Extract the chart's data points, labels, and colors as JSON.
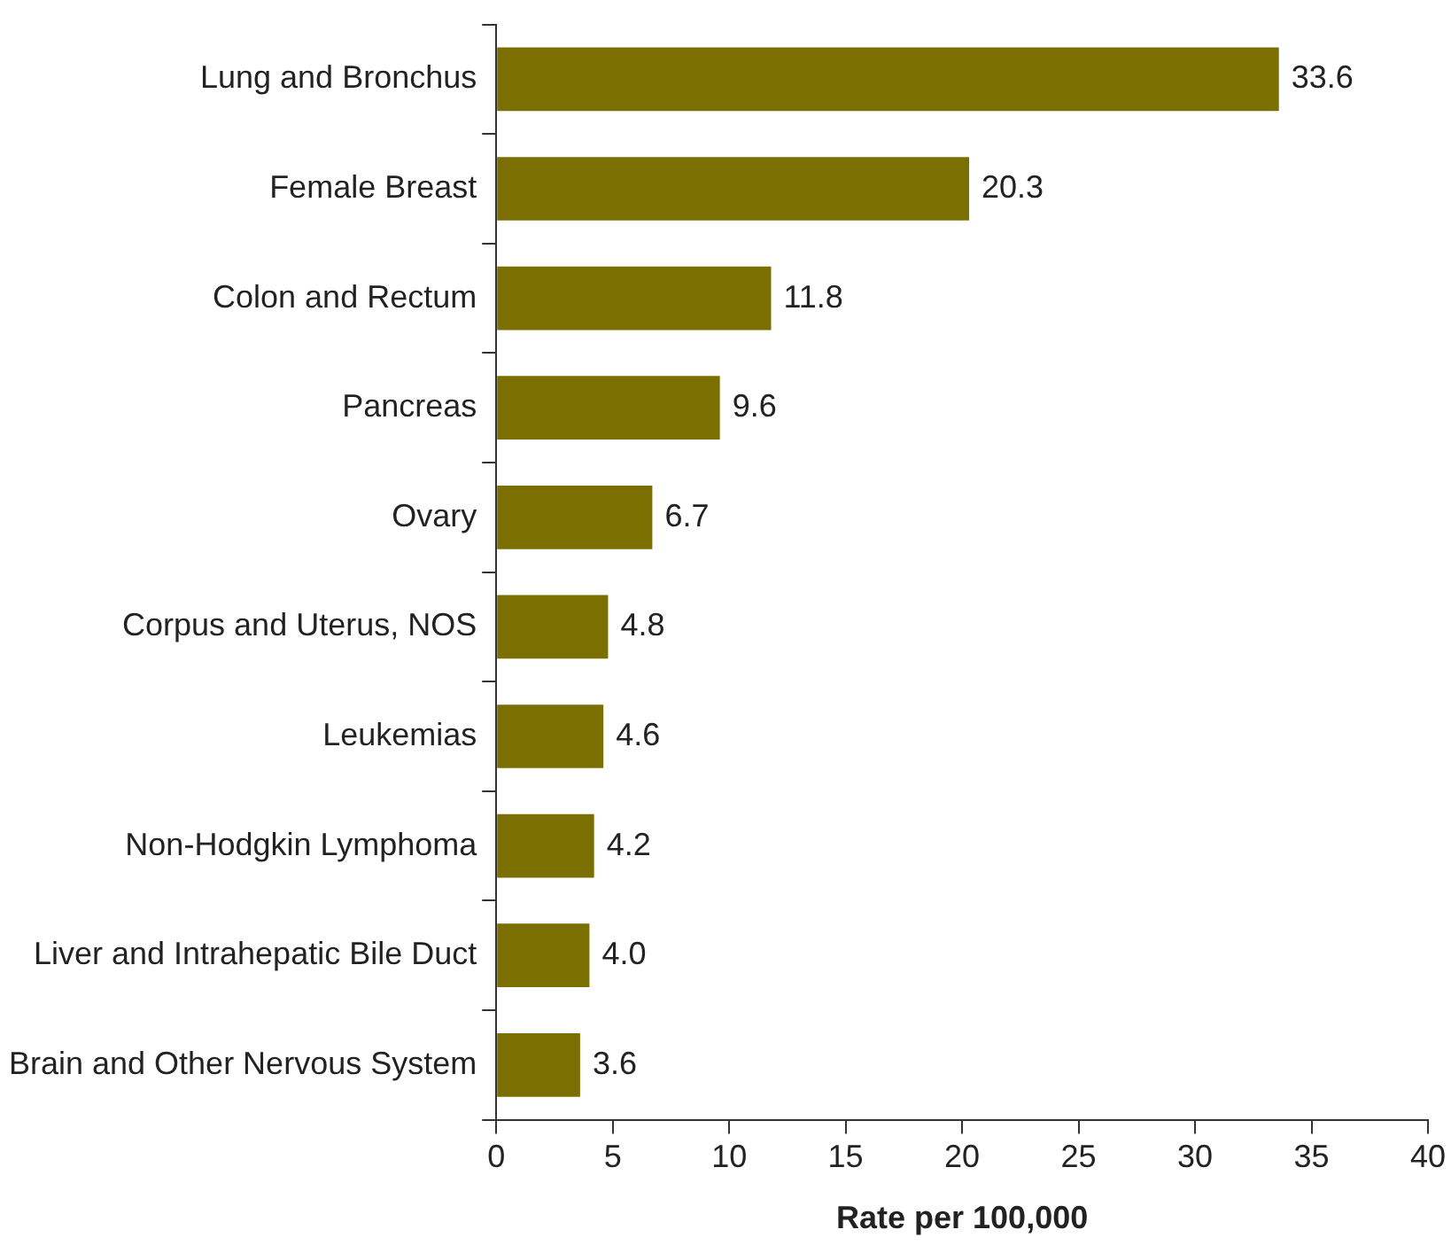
{
  "chart_data": {
    "type": "bar",
    "orientation": "horizontal",
    "xlabel": "Rate per 100,000",
    "categories": [
      "Lung and Bronchus",
      "Female Breast",
      "Colon and Rectum",
      "Pancreas",
      "Ovary",
      "Corpus and Uterus, NOS",
      "Leukemias",
      "Non-Hodgkin Lymphoma",
      "Liver and Intrahepatic Bile Duct",
      "Brain and Other Nervous System"
    ],
    "values": [
      33.6,
      20.3,
      11.8,
      9.6,
      6.7,
      4.8,
      4.6,
      4.2,
      4.0,
      3.6
    ],
    "value_labels": [
      "33.6",
      "20.3",
      "11.8",
      "9.6",
      "6.7",
      "4.8",
      "4.6",
      "4.2",
      "4.0",
      "3.6"
    ],
    "color": "#7a6f00",
    "xlim": [
      0,
      40
    ],
    "xticks": [
      0,
      5,
      10,
      15,
      20,
      25,
      30,
      35,
      40
    ],
    "grid": false,
    "legend": false
  }
}
